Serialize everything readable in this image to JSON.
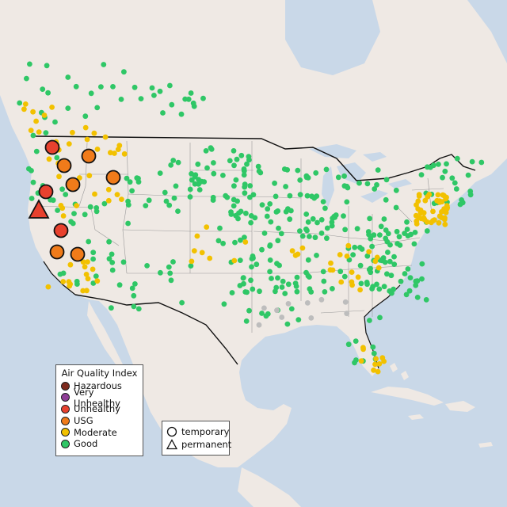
{
  "legend": {
    "title": "Air Quality Index",
    "categories": [
      {
        "label": "Hazardous",
        "color": "#7e2a1e"
      },
      {
        "label": "Very Unhealthy",
        "color": "#8f3f97"
      },
      {
        "label": "Unhealthy",
        "color": "#e8412e"
      },
      {
        "label": "USG",
        "color": "#f07b1a"
      },
      {
        "label": "Moderate",
        "color": "#f2c100"
      },
      {
        "label": "Good",
        "color": "#2fc766"
      }
    ]
  },
  "monitor_types": {
    "temporary_label": "temporary",
    "permanent_label": "permanent"
  },
  "colors": {
    "water": "#c9d8e8",
    "land": "#efe9e4",
    "no_data": "#bdbdbd"
  }
}
